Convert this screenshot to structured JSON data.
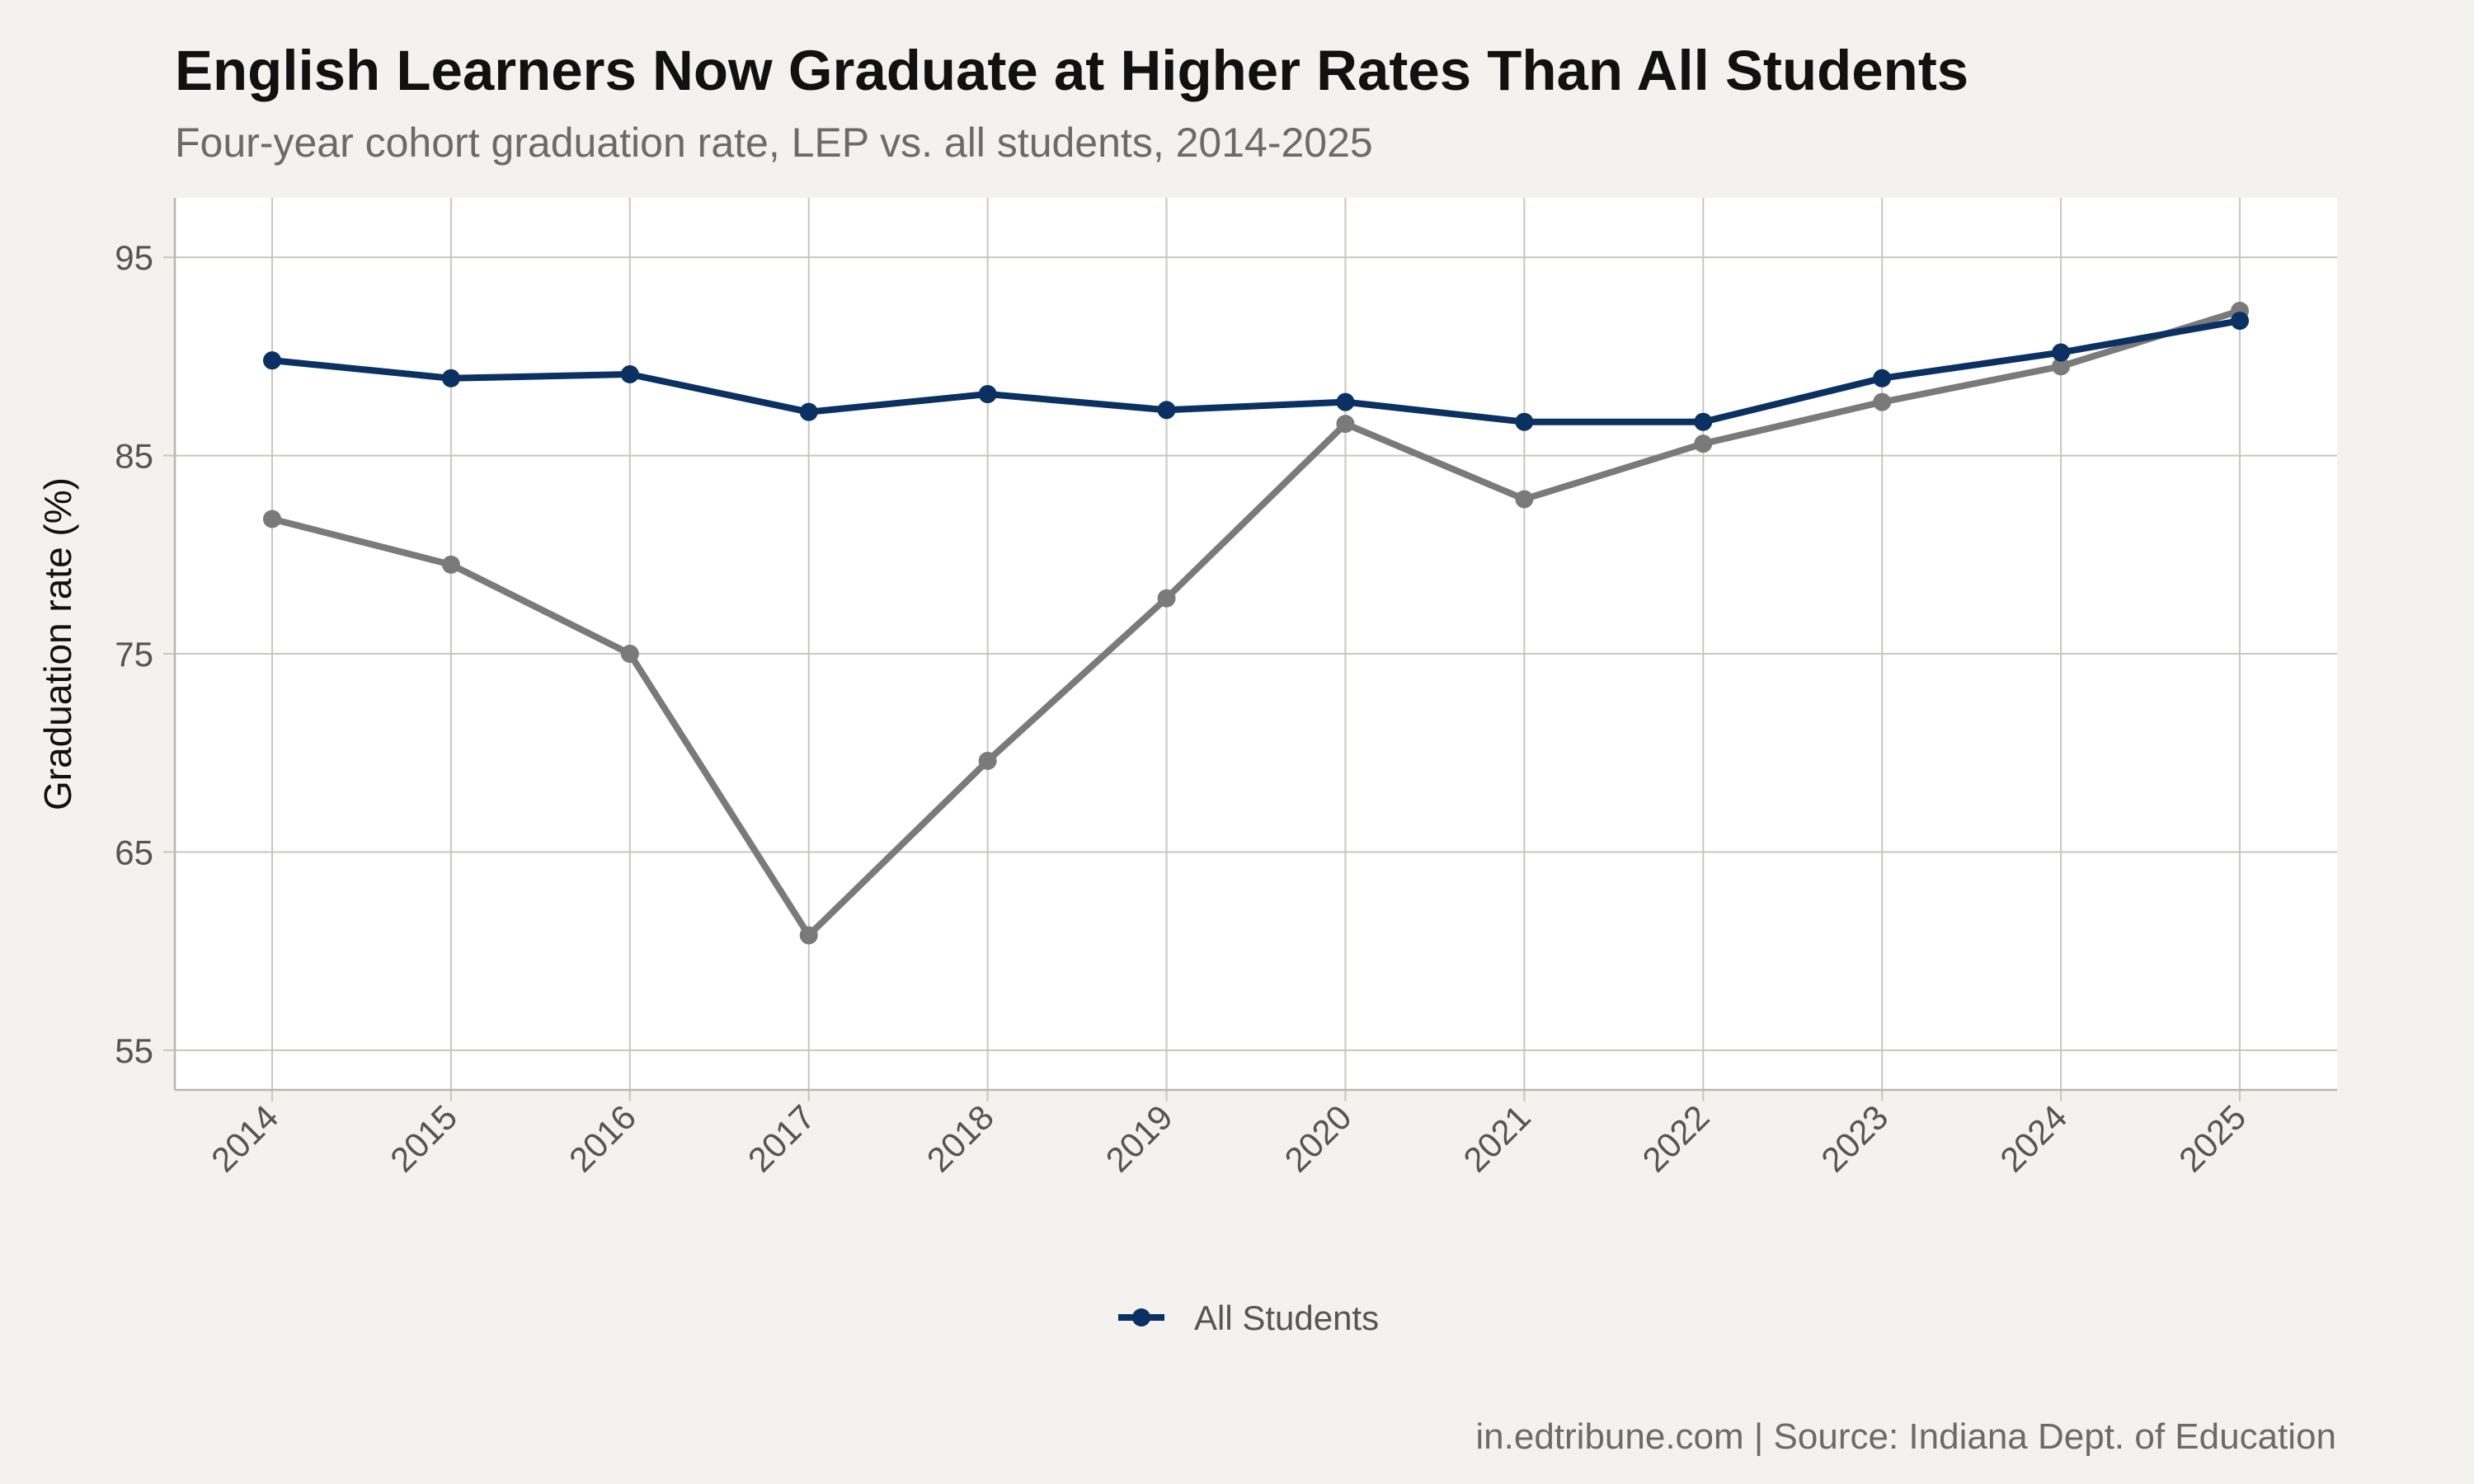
{
  "chart_data": {
    "type": "line",
    "title": "English Learners Now Graduate at Higher Rates Than All Students",
    "subtitle": "Four-year cohort graduation rate, LEP vs. all students, 2014-2025",
    "ylabel": "Graduation rate (%)",
    "xlabel": "",
    "x": [
      "2014",
      "2015",
      "2016",
      "2017",
      "2018",
      "2019",
      "2020",
      "2021",
      "2022",
      "2023",
      "2024",
      "2025"
    ],
    "yticks": [
      55,
      65,
      75,
      85,
      95
    ],
    "ylim": [
      53,
      98
    ],
    "grid": true,
    "legend_position": "bottom",
    "series": [
      {
        "name": "All Students",
        "color": "#0a3161",
        "in_legend": true,
        "values": [
          89.8,
          88.9,
          89.1,
          87.2,
          88.1,
          87.3,
          87.7,
          86.7,
          86.7,
          88.9,
          90.2,
          91.8
        ]
      },
      {
        "color": "#7a7a7a",
        "in_legend": false,
        "values": [
          81.8,
          79.5,
          75.0,
          60.8,
          69.6,
          77.8,
          86.6,
          82.8,
          85.6,
          87.7,
          89.5,
          92.3
        ]
      }
    ],
    "caption": "in.edtribune.com | Source: Indiana Dept. of Education"
  }
}
